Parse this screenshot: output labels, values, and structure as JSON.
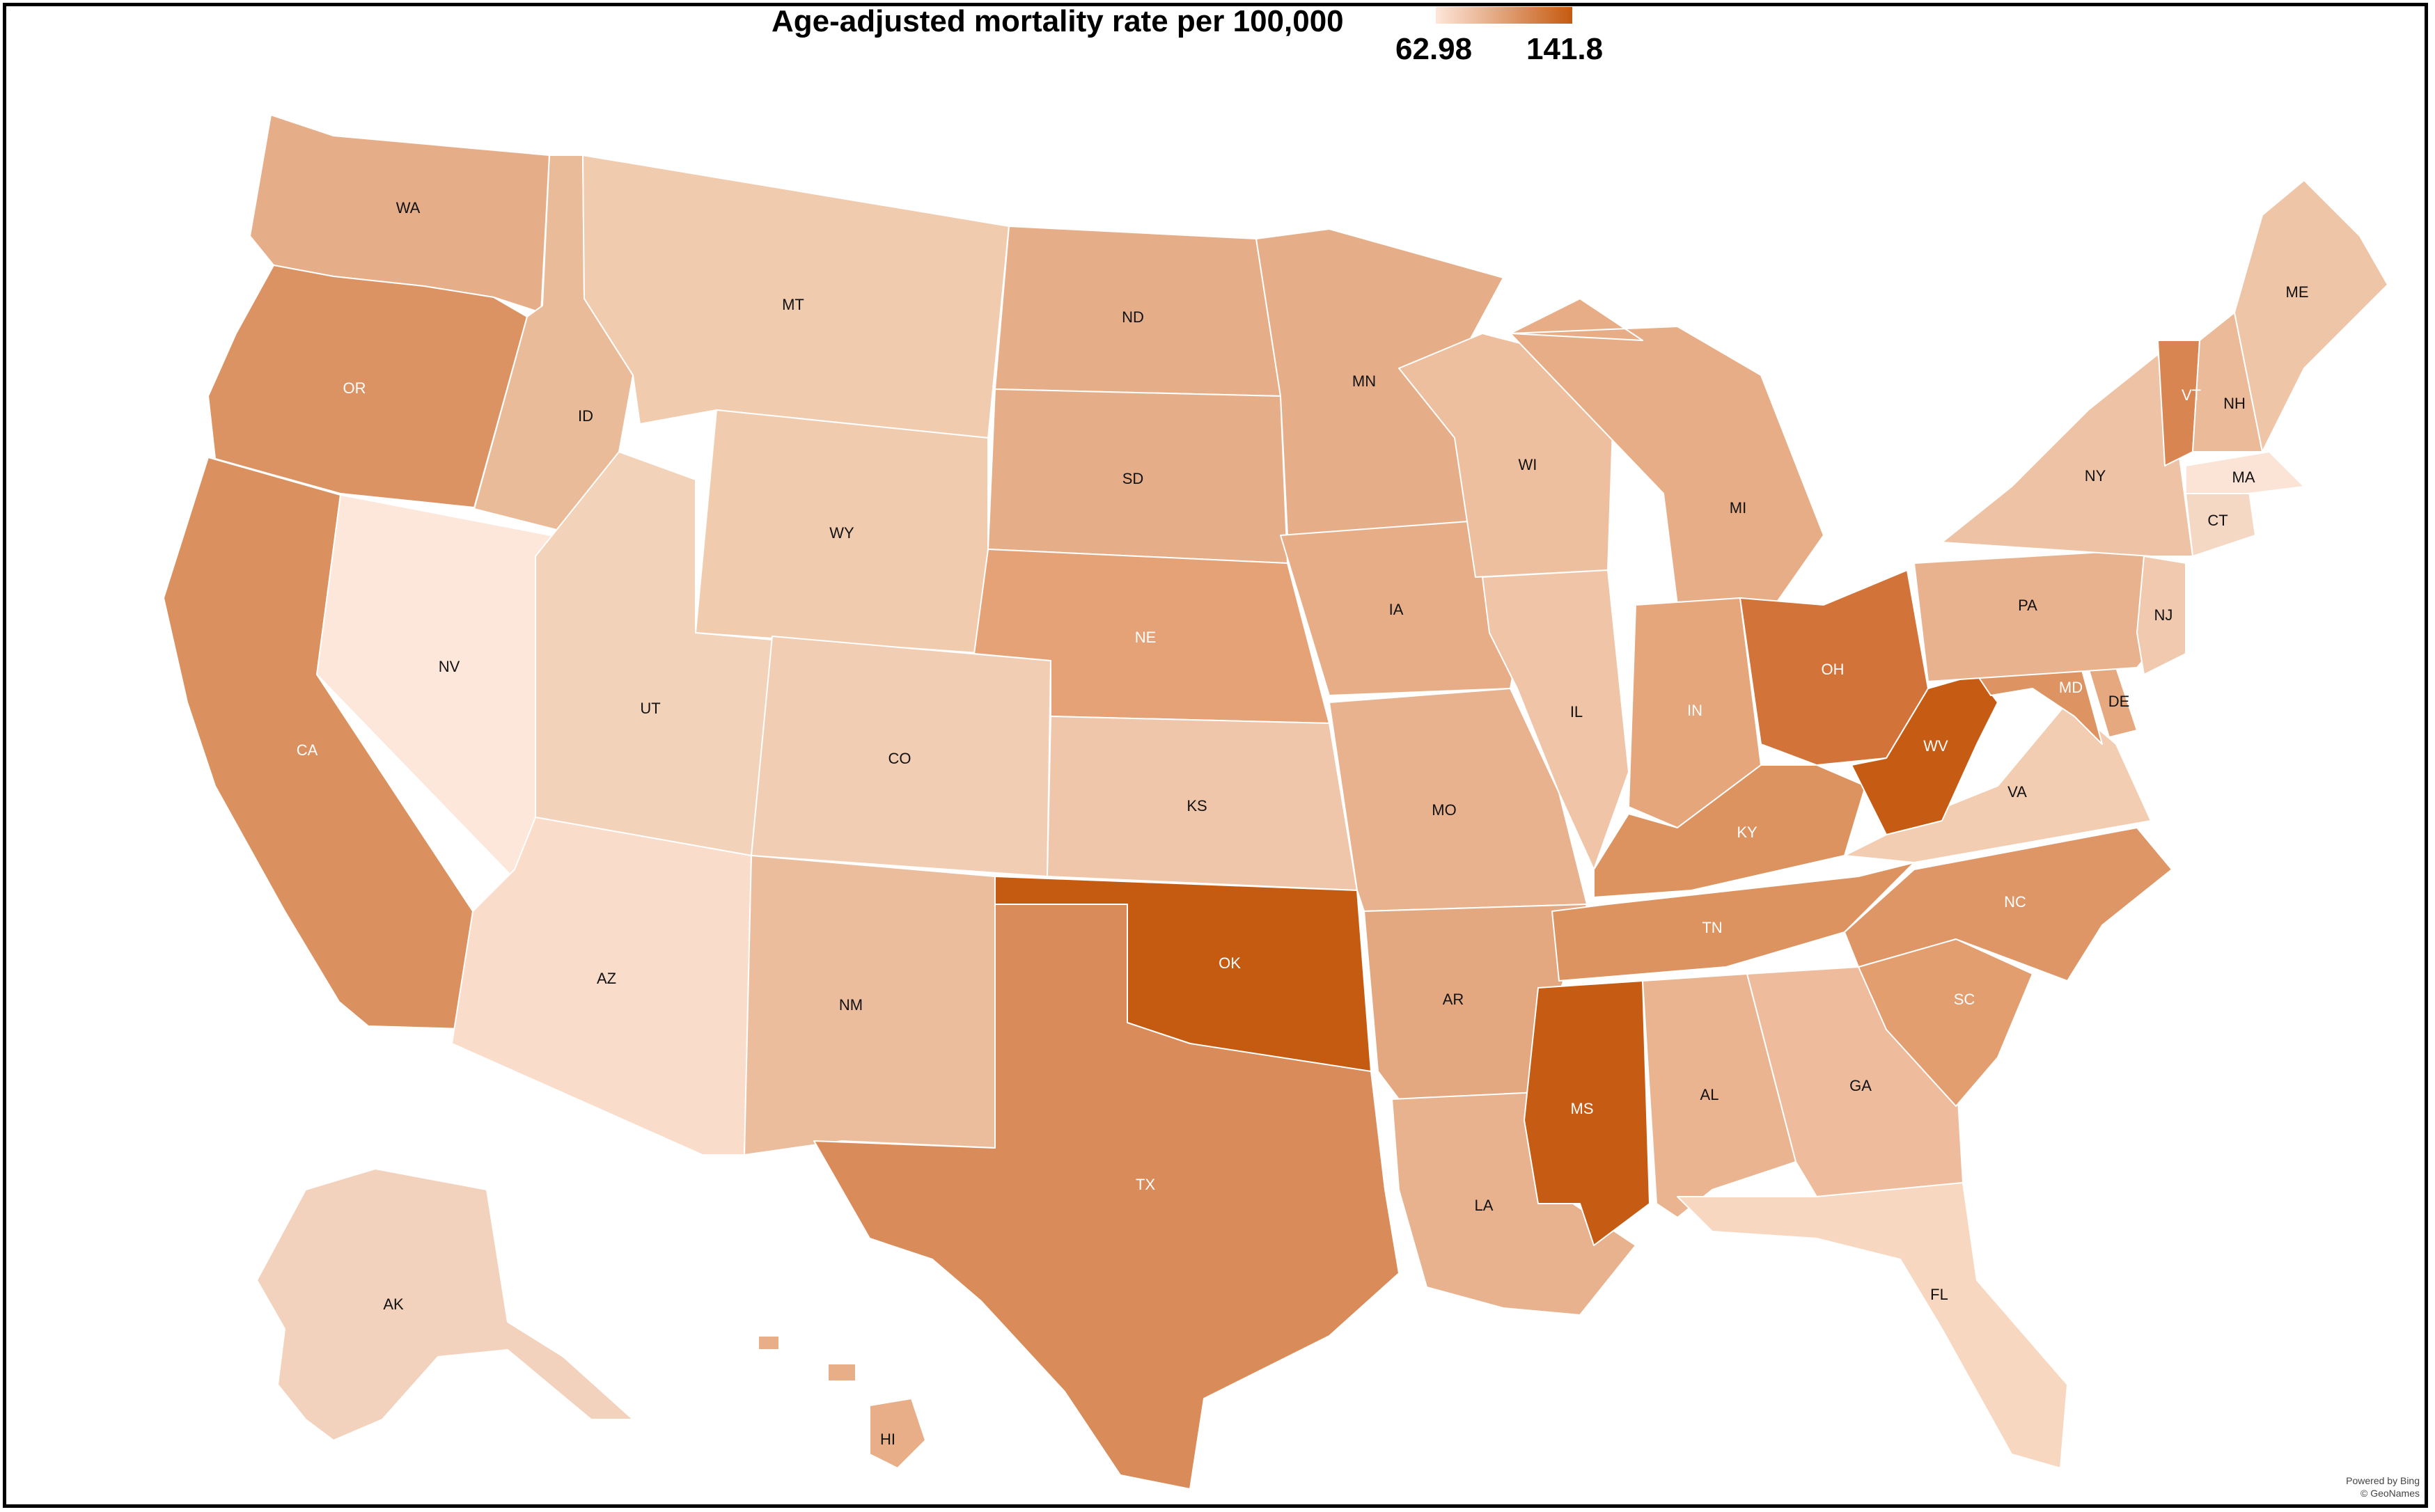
{
  "title": "Age-adjusted mortality rate per 100,000",
  "legend": {
    "min_label": "62.98",
    "max_label": "141.8",
    "min_color": "#fde6da",
    "max_color": "#c55a11"
  },
  "attribution": {
    "line1": "Powered by Bing",
    "line2": "© GeoNames"
  },
  "states": [
    {
      "abbr": "WA",
      "color": "#e6ae88",
      "light": false
    },
    {
      "abbr": "OR",
      "color": "#dc9363",
      "light": true
    },
    {
      "abbr": "CA",
      "color": "#da915f",
      "light": true
    },
    {
      "abbr": "ID",
      "color": "#eabb98",
      "light": false
    },
    {
      "abbr": "NV",
      "color": "#fde6da",
      "light": false
    },
    {
      "abbr": "MT",
      "color": "#f0cbae",
      "light": false
    },
    {
      "abbr": "WY",
      "color": "#f0cbae",
      "light": false
    },
    {
      "abbr": "UT",
      "color": "#f2d2b8",
      "light": false
    },
    {
      "abbr": "AZ",
      "color": "#f9dcc9",
      "light": false
    },
    {
      "abbr": "CO",
      "color": "#f1cdb3",
      "light": false
    },
    {
      "abbr": "NM",
      "color": "#ebbd9d",
      "light": false
    },
    {
      "abbr": "ND",
      "color": "#e6ae88",
      "light": false
    },
    {
      "abbr": "SD",
      "color": "#e6ae88",
      "light": false
    },
    {
      "abbr": "NE",
      "color": "#e4a276",
      "light": true
    },
    {
      "abbr": "KS",
      "color": "#efc6a9",
      "light": false
    },
    {
      "abbr": "OK",
      "color": "#c55a11",
      "light": true
    },
    {
      "abbr": "TX",
      "color": "#d98c5a",
      "light": true
    },
    {
      "abbr": "MN",
      "color": "#e6ae88",
      "light": false
    },
    {
      "abbr": "IA",
      "color": "#e6ad87",
      "light": false
    },
    {
      "abbr": "MO",
      "color": "#e8b28e",
      "light": false
    },
    {
      "abbr": "AR",
      "color": "#e3a87f",
      "light": false
    },
    {
      "abbr": "LA",
      "color": "#e8b28e",
      "light": false
    },
    {
      "abbr": "WI",
      "color": "#eebf9f",
      "light": false
    },
    {
      "abbr": "IL",
      "color": "#efc4a7",
      "light": false
    },
    {
      "abbr": "MI",
      "color": "#e7ad86",
      "light": false
    },
    {
      "abbr": "IN",
      "color": "#e6a67c",
      "light": true
    },
    {
      "abbr": "OH",
      "color": "#d2743a",
      "light": true
    },
    {
      "abbr": "KY",
      "color": "#dc935f",
      "light": true
    },
    {
      "abbr": "TN",
      "color": "#dd9360",
      "light": true
    },
    {
      "abbr": "MS",
      "color": "#c65c14",
      "light": true
    },
    {
      "abbr": "AL",
      "color": "#eab490",
      "light": false
    },
    {
      "abbr": "GA",
      "color": "#eebc9c",
      "light": false
    },
    {
      "abbr": "FL",
      "color": "#f8d7c1",
      "light": false
    },
    {
      "abbr": "SC",
      "color": "#e39e70",
      "light": true
    },
    {
      "abbr": "NC",
      "color": "#df9666",
      "light": true
    },
    {
      "abbr": "VA",
      "color": "#f2cdb2",
      "light": false
    },
    {
      "abbr": "WV",
      "color": "#c65c14",
      "light": true
    },
    {
      "abbr": "MD",
      "color": "#dd9462",
      "light": true
    },
    {
      "abbr": "DE",
      "color": "#e6a87e",
      "light": false
    },
    {
      "abbr": "PA",
      "color": "#e8b28e",
      "light": false
    },
    {
      "abbr": "NJ",
      "color": "#f0c9ae",
      "light": false
    },
    {
      "abbr": "NY",
      "color": "#eec3a5",
      "light": false
    },
    {
      "abbr": "CT",
      "color": "#f5d8c4",
      "light": false
    },
    {
      "abbr": "MA",
      "color": "#fbe4d6",
      "light": false
    },
    {
      "abbr": "VT",
      "color": "#d98552",
      "light": true
    },
    {
      "abbr": "NH",
      "color": "#ebba98",
      "light": false
    },
    {
      "abbr": "ME",
      "color": "#efc5a8",
      "light": false
    },
    {
      "abbr": "AK",
      "color": "#f3d2bd",
      "light": false
    },
    {
      "abbr": "HI",
      "color": "#e7ae87",
      "light": false
    }
  ]
}
